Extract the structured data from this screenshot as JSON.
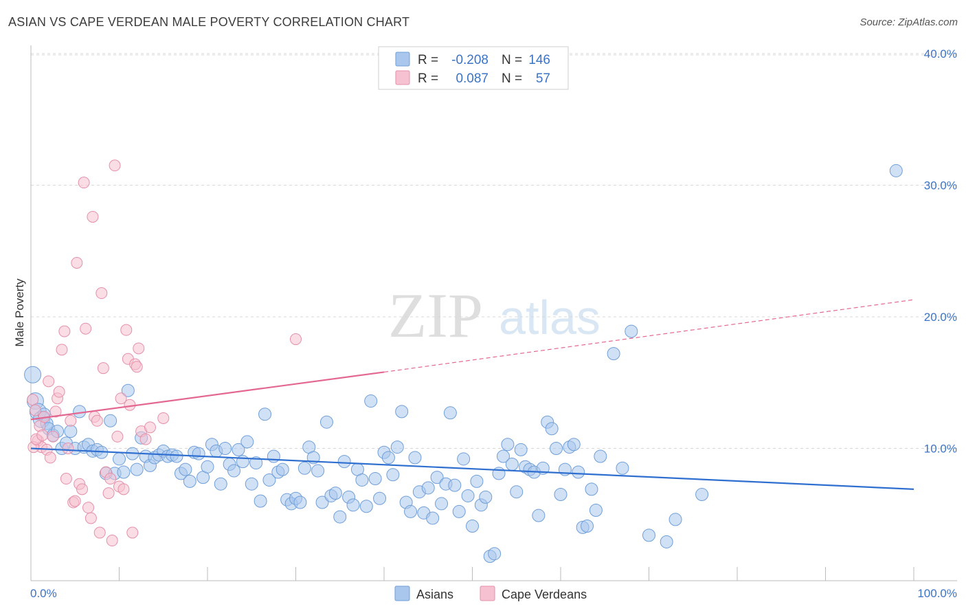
{
  "header": {
    "title": "ASIAN VS CAPE VERDEAN MALE POVERTY CORRELATION CHART",
    "source": "Source: ZipAtlas.com"
  },
  "watermark": {
    "zip": "ZIP",
    "atlas": "atlas"
  },
  "colors": {
    "asians_fill": "#a9c7ec",
    "asians_stroke": "#6f9fd8",
    "asians_line": "#2f6fd0",
    "cape_fill": "#f6c1d0",
    "cape_stroke": "#e590aa",
    "cape_line": "#e36790",
    "tick_label": "#3b73c6",
    "grid": "#d8d8d8"
  },
  "stats_legend": {
    "rows": [
      {
        "r_label": "R =",
        "r_value": "-0.208",
        "n_label": "N =",
        "n_value": "146"
      },
      {
        "r_label": "R =",
        "r_value": "0.087",
        "n_label": "N =",
        "n_value": "57"
      }
    ]
  },
  "chart_data": {
    "type": "scatter",
    "title": "ASIAN VS CAPE VERDEAN MALE POVERTY CORRELATION CHART",
    "xlabel": "",
    "ylabel": "Male Poverty",
    "xlim": [
      0,
      100
    ],
    "ylim": [
      0,
      40
    ],
    "x_tick_labels": [
      "0.0%",
      "100.0%"
    ],
    "y_ticks": [
      10,
      20,
      30,
      40
    ],
    "y_tick_labels": [
      "10.0%",
      "20.0%",
      "30.0%",
      "40.0%"
    ],
    "grid": true,
    "legend_position": "bottom-center",
    "series": [
      {
        "name": "Asians",
        "r": -0.208,
        "n": 146,
        "trend": {
          "x": [
            0,
            100
          ],
          "y": [
            10.0,
            6.9
          ],
          "style": "solid"
        },
        "points": [
          [
            0.2,
            15.6
          ],
          [
            0.5,
            13.6
          ],
          [
            0.8,
            12.8
          ],
          [
            1.2,
            12.2
          ],
          [
            1.5,
            12.6
          ],
          [
            1.8,
            11.9
          ],
          [
            2.0,
            11.5
          ],
          [
            2.5,
            11.0
          ],
          [
            3.0,
            11.3
          ],
          [
            3.5,
            10.0
          ],
          [
            4.0,
            10.4
          ],
          [
            4.5,
            11.3
          ],
          [
            5.0,
            10.0
          ],
          [
            5.5,
            12.8
          ],
          [
            6.0,
            10.1
          ],
          [
            6.5,
            10.3
          ],
          [
            7.0,
            9.8
          ],
          [
            7.5,
            9.9
          ],
          [
            8.0,
            9.7
          ],
          [
            8.5,
            8.1
          ],
          [
            9.0,
            12.1
          ],
          [
            9.5,
            8.1
          ],
          [
            10.0,
            9.2
          ],
          [
            10.5,
            8.2
          ],
          [
            11.0,
            14.4
          ],
          [
            11.5,
            9.6
          ],
          [
            12.0,
            8.4
          ],
          [
            12.5,
            10.8
          ],
          [
            13.0,
            9.4
          ],
          [
            13.5,
            8.7
          ],
          [
            14.0,
            9.3
          ],
          [
            14.5,
            9.5
          ],
          [
            15.0,
            9.8
          ],
          [
            15.5,
            9.4
          ],
          [
            16.0,
            9.5
          ],
          [
            16.5,
            9.4
          ],
          [
            17.0,
            8.1
          ],
          [
            17.5,
            8.4
          ],
          [
            18.0,
            7.5
          ],
          [
            18.5,
            9.7
          ],
          [
            19.0,
            9.6
          ],
          [
            19.5,
            7.8
          ],
          [
            20.0,
            8.6
          ],
          [
            20.5,
            10.3
          ],
          [
            21.0,
            9.8
          ],
          [
            21.5,
            7.3
          ],
          [
            22.0,
            10.0
          ],
          [
            22.5,
            8.8
          ],
          [
            23.0,
            8.3
          ],
          [
            23.5,
            9.9
          ],
          [
            24.0,
            9.0
          ],
          [
            24.5,
            10.5
          ],
          [
            25.0,
            7.3
          ],
          [
            25.5,
            8.9
          ],
          [
            26.0,
            6.0
          ],
          [
            26.5,
            12.6
          ],
          [
            27.0,
            7.6
          ],
          [
            27.5,
            9.4
          ],
          [
            28.0,
            8.2
          ],
          [
            28.5,
            8.4
          ],
          [
            29.0,
            6.1
          ],
          [
            29.5,
            5.8
          ],
          [
            30.0,
            6.2
          ],
          [
            30.5,
            5.9
          ],
          [
            31.0,
            8.5
          ],
          [
            31.5,
            10.1
          ],
          [
            32.0,
            9.3
          ],
          [
            32.5,
            8.3
          ],
          [
            33.0,
            5.9
          ],
          [
            33.5,
            12.0
          ],
          [
            34.0,
            6.4
          ],
          [
            34.5,
            6.6
          ],
          [
            35.0,
            4.8
          ],
          [
            35.5,
            9.0
          ],
          [
            36.0,
            6.3
          ],
          [
            36.5,
            5.7
          ],
          [
            37.0,
            8.4
          ],
          [
            37.5,
            7.6
          ],
          [
            38.0,
            5.6
          ],
          [
            38.5,
            13.6
          ],
          [
            39.0,
            7.7
          ],
          [
            39.5,
            6.2
          ],
          [
            40.0,
            9.7
          ],
          [
            40.5,
            9.3
          ],
          [
            41.0,
            8.0
          ],
          [
            41.5,
            10.1
          ],
          [
            42.0,
            12.8
          ],
          [
            42.5,
            5.9
          ],
          [
            43.0,
            5.2
          ],
          [
            43.5,
            9.3
          ],
          [
            44.0,
            6.7
          ],
          [
            44.5,
            5.1
          ],
          [
            45.0,
            7.0
          ],
          [
            45.5,
            4.7
          ],
          [
            46.0,
            7.8
          ],
          [
            46.5,
            5.8
          ],
          [
            47.0,
            7.3
          ],
          [
            47.5,
            12.7
          ],
          [
            48.0,
            7.2
          ],
          [
            48.5,
            5.2
          ],
          [
            49.0,
            9.2
          ],
          [
            49.5,
            6.4
          ],
          [
            50.0,
            4.1
          ],
          [
            50.5,
            7.5
          ],
          [
            51.0,
            5.7
          ],
          [
            51.5,
            6.3
          ],
          [
            52.0,
            1.8
          ],
          [
            52.5,
            2.0
          ],
          [
            53.0,
            8.1
          ],
          [
            53.5,
            9.4
          ],
          [
            54.0,
            10.3
          ],
          [
            54.5,
            8.8
          ],
          [
            55.0,
            6.7
          ],
          [
            55.5,
            9.9
          ],
          [
            56.0,
            8.6
          ],
          [
            56.5,
            8.4
          ],
          [
            57.0,
            8.2
          ],
          [
            57.5,
            4.9
          ],
          [
            58.0,
            8.5
          ],
          [
            58.5,
            12.0
          ],
          [
            59.0,
            11.5
          ],
          [
            59.5,
            10.0
          ],
          [
            60.0,
            6.5
          ],
          [
            60.5,
            8.4
          ],
          [
            61.0,
            10.1
          ],
          [
            61.5,
            10.3
          ],
          [
            62.0,
            8.2
          ],
          [
            62.5,
            4.0
          ],
          [
            63.0,
            4.1
          ],
          [
            63.5,
            6.9
          ],
          [
            64.0,
            5.3
          ],
          [
            64.5,
            9.4
          ],
          [
            66.0,
            17.2
          ],
          [
            67.0,
            8.5
          ],
          [
            68.0,
            18.9
          ],
          [
            70.0,
            3.4
          ],
          [
            72.0,
            2.9
          ],
          [
            73.0,
            4.6
          ],
          [
            76.0,
            6.5
          ],
          [
            98.0,
            31.1
          ]
        ]
      },
      {
        "name": "Cape Verdeans",
        "r": 0.087,
        "n": 57,
        "trend": {
          "x": [
            0,
            40,
            100
          ],
          "y": [
            12.2,
            15.8,
            21.3
          ],
          "solid_until": 40
        },
        "points": [
          [
            0.2,
            13.7
          ],
          [
            0.5,
            12.9
          ],
          [
            0.8,
            10.6
          ],
          [
            1.0,
            11.7
          ],
          [
            1.2,
            10.1
          ],
          [
            1.5,
            12.4
          ],
          [
            1.8,
            9.9
          ],
          [
            2.0,
            15.1
          ],
          [
            2.2,
            9.3
          ],
          [
            2.5,
            10.9
          ],
          [
            2.8,
            12.8
          ],
          [
            3.0,
            13.8
          ],
          [
            3.2,
            14.3
          ],
          [
            3.5,
            17.5
          ],
          [
            3.8,
            18.9
          ],
          [
            4.0,
            7.7
          ],
          [
            4.2,
            10.0
          ],
          [
            4.5,
            12.1
          ],
          [
            4.8,
            5.9
          ],
          [
            5.0,
            6.0
          ],
          [
            5.2,
            24.1
          ],
          [
            5.5,
            7.3
          ],
          [
            5.8,
            6.9
          ],
          [
            6.0,
            30.2
          ],
          [
            6.2,
            19.1
          ],
          [
            6.5,
            5.5
          ],
          [
            6.8,
            4.7
          ],
          [
            7.0,
            27.6
          ],
          [
            7.2,
            12.4
          ],
          [
            7.5,
            12.1
          ],
          [
            7.8,
            3.6
          ],
          [
            8.0,
            21.8
          ],
          [
            8.2,
            16.1
          ],
          [
            8.5,
            8.2
          ],
          [
            8.8,
            6.6
          ],
          [
            9.0,
            7.7
          ],
          [
            9.2,
            3.0
          ],
          [
            9.5,
            31.5
          ],
          [
            9.8,
            10.9
          ],
          [
            10.0,
            7.1
          ],
          [
            10.2,
            13.8
          ],
          [
            10.5,
            6.9
          ],
          [
            10.8,
            19.0
          ],
          [
            11.0,
            16.8
          ],
          [
            11.2,
            13.3
          ],
          [
            11.5,
            3.6
          ],
          [
            11.8,
            16.4
          ],
          [
            12.0,
            16.2
          ],
          [
            12.2,
            17.6
          ],
          [
            12.5,
            11.3
          ],
          [
            13.0,
            10.7
          ],
          [
            13.5,
            11.6
          ],
          [
            15.0,
            12.3
          ],
          [
            30.0,
            18.3
          ],
          [
            0.3,
            10.1
          ],
          [
            0.6,
            10.7
          ],
          [
            1.3,
            11.0
          ]
        ]
      }
    ]
  },
  "bottom_legend": {
    "items": [
      {
        "label": "Asians"
      },
      {
        "label": "Cape Verdeans"
      }
    ]
  }
}
